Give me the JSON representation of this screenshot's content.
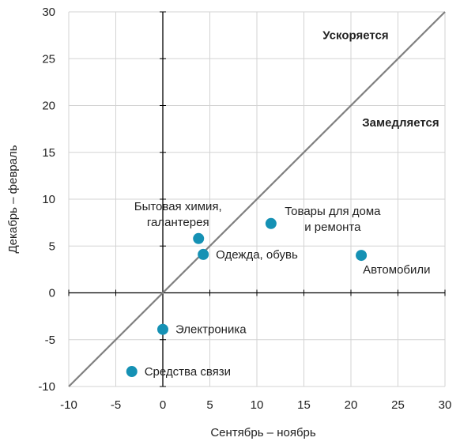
{
  "chart_data": {
    "type": "scatter",
    "xlabel": "Сентябрь – ноябрь",
    "ylabel": "Декабрь – февраль",
    "xlim": [
      -10,
      30
    ],
    "ylim": [
      -10,
      30
    ],
    "x_ticks": [
      -10,
      -5,
      0,
      5,
      10,
      15,
      20,
      25,
      30
    ],
    "y_ticks": [
      -10,
      -5,
      0,
      5,
      10,
      15,
      20,
      25,
      30
    ],
    "x_tick_labels": [
      "-10",
      "-5",
      "0",
      "5",
      "10",
      "15",
      "20",
      "25",
      "30"
    ],
    "y_tick_labels": [
      "-10",
      "-5",
      "0",
      "5",
      "10",
      "15",
      "20",
      "25",
      "30"
    ],
    "grid": true,
    "diagonal_line": "y = x",
    "point_color": "#1591b4",
    "line_color": "#808080",
    "grid_color": "#d3d3d3",
    "points": [
      {
        "label": [
          "Бытовая химия,",
          "галантерея"
        ],
        "x": 3.8,
        "y": 5.8,
        "label_pos": "above-left"
      },
      {
        "label": [
          "Товары для дома",
          "и ремонта"
        ],
        "x": 11.5,
        "y": 7.4,
        "label_pos": "right"
      },
      {
        "label": [
          "Одежда, обувь"
        ],
        "x": 4.3,
        "y": 4.1,
        "label_pos": "right"
      },
      {
        "label": [
          "Автомобили"
        ],
        "x": 21.1,
        "y": 4.0,
        "label_pos": "below"
      },
      {
        "label": [
          "Электроника"
        ],
        "x": 0.0,
        "y": -3.9,
        "label_pos": "right"
      },
      {
        "label": [
          "Средства связи"
        ],
        "x": -3.3,
        "y": -8.4,
        "label_pos": "right"
      }
    ],
    "annotations": [
      {
        "text": "Ускоряется",
        "x": 17,
        "y": 27.5,
        "bold": true
      },
      {
        "text": "Замедляется",
        "x": 21.2,
        "y": 18.2,
        "bold": true
      }
    ]
  }
}
